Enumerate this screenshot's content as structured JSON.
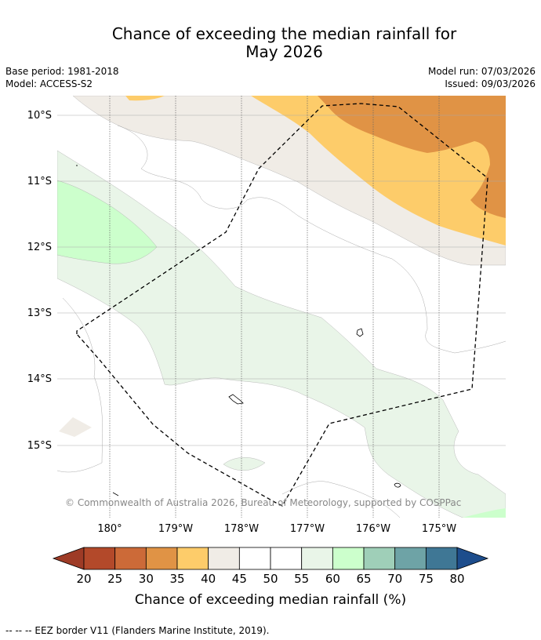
{
  "title": {
    "line1": "Chance of exceeding the median rainfall for",
    "line2": "May 2026"
  },
  "meta": {
    "base_period": "Base period: 1981-2018",
    "model": "Model: ACCESS-S2",
    "model_run": "Model run: 07/03/2026",
    "issued": "Issued: 09/03/2026"
  },
  "map": {
    "copyright": "© Commonwealth of Australia 2026, Bureau of Meteorology, supported by COSPPac",
    "lat_labels": [
      "10°S",
      "11°S",
      "12°S",
      "13°S",
      "14°S",
      "15°S"
    ],
    "lon_labels": [
      "180°",
      "179°W",
      "178°W",
      "177°W",
      "176°W",
      "175°W"
    ]
  },
  "colorbar": {
    "ticks": [
      "20",
      "25",
      "30",
      "35",
      "40",
      "45",
      "50",
      "55",
      "60",
      "65",
      "70",
      "75",
      "80"
    ],
    "colors": [
      "#b3492a",
      "#cc6a38",
      "#e09345",
      "#fdcc6a",
      "#f0ece6",
      "#ffffff",
      "#ffffff",
      "#e9f5e8",
      "#ccffcc",
      "#9fcfb8",
      "#6ea3a6",
      "#3f7795"
    ],
    "under_color": "#9e3b26",
    "over_color": "#1d4d8c",
    "label": "Chance of exceeding median rainfall (%)"
  },
  "footer": {
    "eez_note": "--  --  -- EEZ border V11 (Flanders Marine Institute, 2019)."
  }
}
